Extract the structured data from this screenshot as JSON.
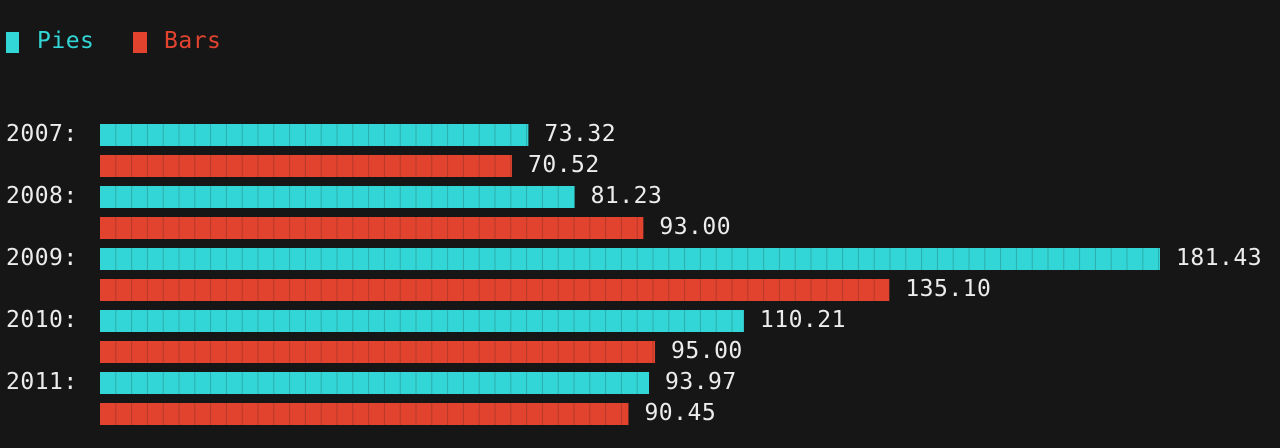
{
  "colors": {
    "background": "#161616",
    "pies": "#33d6d6",
    "bars": "#e2432f",
    "text": "#ececec",
    "cell_line": "#161616"
  },
  "chart_data": {
    "type": "bar",
    "orientation": "horizontal",
    "style": "terminal block-cell bar chart",
    "categories": [
      "2007:",
      "2008:",
      "2009:",
      "2010:",
      "2011:"
    ],
    "series": [
      {
        "name": "Pies",
        "color": "#33d6d6",
        "values": [
          73.32,
          81.23,
          181.43,
          110.21,
          93.97
        ]
      },
      {
        "name": "Bars",
        "color": "#e2432f",
        "values": [
          70.52,
          93.0,
          135.1,
          95.0,
          90.45
        ]
      }
    ],
    "value_labels": {
      "Pies": [
        "73.32",
        "81.23",
        "181.43",
        "110.21",
        "93.97"
      ],
      "Bars": [
        "70.52",
        "93.00",
        "135.10",
        "95.00",
        "90.45"
      ]
    },
    "legend_position": "top-left",
    "grid": false,
    "axes_visible": false
  }
}
